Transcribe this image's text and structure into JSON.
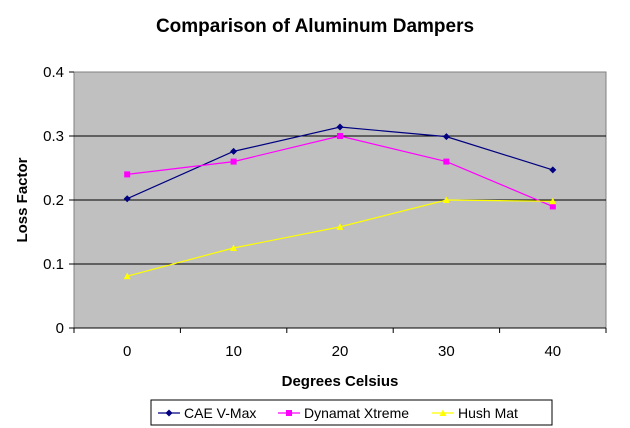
{
  "chart_data": {
    "type": "line",
    "title": "Comparison of Aluminum Dampers",
    "xlabel": "Degrees Celsius",
    "ylabel": "Loss Factor",
    "categories": [
      "0",
      "10",
      "20",
      "30",
      "40"
    ],
    "x": [
      0,
      10,
      20,
      30,
      40
    ],
    "ylim": [
      0,
      0.4
    ],
    "yticks": [
      0,
      0.1,
      0.2,
      0.3,
      0.4
    ],
    "ytick_labels": [
      "0",
      "0.1",
      "0.2",
      "0.3",
      "0.4"
    ],
    "grid": true,
    "plot_background": "#c0c0c0",
    "legend_position": "bottom",
    "series": [
      {
        "name": "CAE V-Max",
        "values": [
          0.202,
          0.276,
          0.314,
          0.299,
          0.247
        ],
        "color": "#000080",
        "marker": "diamond"
      },
      {
        "name": "Dynamat Xtreme",
        "values": [
          0.24,
          0.26,
          0.3,
          0.26,
          0.19
        ],
        "color": "#ff00ff",
        "marker": "square"
      },
      {
        "name": "Hush Mat",
        "values": [
          0.081,
          0.125,
          0.158,
          0.2,
          0.198
        ],
        "color": "#ffff00",
        "marker": "triangle"
      }
    ]
  }
}
